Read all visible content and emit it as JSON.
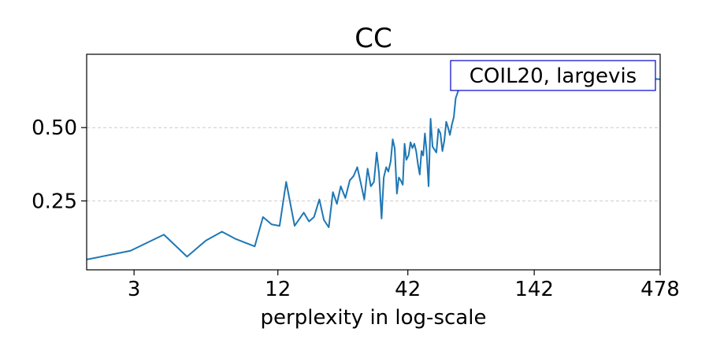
{
  "chart_data": {
    "type": "line",
    "title": "CC",
    "xlabel": "perplexity in log-scale",
    "ylabel": "",
    "x_scale": "log",
    "xlim": [
      1.9,
      478
    ],
    "ylim": [
      0.015,
      0.75
    ],
    "x_ticks": [
      {
        "value": 3,
        "label": "3"
      },
      {
        "value": 12,
        "label": "12"
      },
      {
        "value": 42,
        "label": "42"
      },
      {
        "value": 142,
        "label": "142"
      },
      {
        "value": 478,
        "label": "478"
      }
    ],
    "y_ticks": [
      {
        "value": 0.25,
        "label": "0.25"
      },
      {
        "value": 0.5,
        "label": "0.50"
      }
    ],
    "grid": "y-dashed",
    "legend_placement": "top-right",
    "legend_text": "COIL20, largevis",
    "color": "#1f77b4",
    "series": [
      {
        "x": [
          1.9,
          2.9,
          4.0,
          5.0,
          6.0,
          7.0,
          8.0,
          9.6,
          10.4,
          11.3,
          12.2,
          13.0,
          14.1,
          15.4,
          16.2,
          17.0,
          17.9,
          18.7,
          19.6,
          20.4,
          21.2,
          22.0,
          23.0,
          24.0,
          24.9,
          25.8,
          26.7,
          27.6,
          28.5,
          29.4,
          30.3,
          31.1,
          31.8,
          32.6,
          33.3,
          34.1,
          34.8,
          35.6,
          36.3,
          37.0,
          37.8,
          38.5,
          39.2,
          40.0,
          40.7,
          41.4,
          42.3,
          43.1,
          43.9,
          44.7,
          45.5,
          46.3,
          47.1,
          47.9,
          48.7,
          49.5,
          50.3,
          51.3,
          52.3,
          53.3,
          54.3,
          55.3,
          56.4,
          57.5,
          58.6,
          59.7,
          60.8,
          61.9,
          63.0,
          64.2,
          65.4,
          66.6,
          67.9,
          69.2,
          70.5,
          71.8,
          73.2,
          74.6,
          76.0,
          77.4,
          78.9,
          84.8,
          478
        ],
        "y": [
          0.05,
          0.08,
          0.135,
          0.06,
          0.115,
          0.145,
          0.12,
          0.095,
          0.195,
          0.17,
          0.165,
          0.315,
          0.165,
          0.21,
          0.18,
          0.195,
          0.255,
          0.185,
          0.16,
          0.28,
          0.24,
          0.3,
          0.26,
          0.32,
          0.335,
          0.365,
          0.31,
          0.255,
          0.36,
          0.3,
          0.315,
          0.415,
          0.345,
          0.19,
          0.33,
          0.365,
          0.35,
          0.385,
          0.46,
          0.43,
          0.275,
          0.33,
          0.32,
          0.305,
          0.445,
          0.39,
          0.405,
          0.45,
          0.43,
          0.445,
          0.42,
          0.375,
          0.34,
          0.42,
          0.405,
          0.48,
          0.42,
          0.3,
          0.53,
          0.435,
          0.425,
          0.415,
          0.495,
          0.48,
          0.42,
          0.455,
          0.52,
          0.5,
          0.475,
          0.51,
          0.535,
          0.6,
          0.62,
          0.64,
          0.655,
          0.665,
          0.67,
          0.675,
          0.68,
          0.685,
          0.69,
          0.7,
          0.665
        ]
      }
    ]
  }
}
